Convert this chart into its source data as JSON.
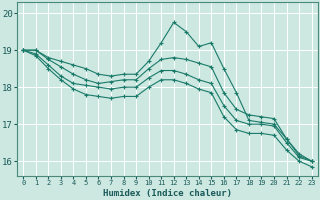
{
  "title": "",
  "xlabel": "Humidex (Indice chaleur)",
  "ylabel": "",
  "bg_color": "#cce8e0",
  "grid_color": "#ffffff",
  "line_color": "#1a7a6a",
  "xlim": [
    -0.5,
    23.5
  ],
  "ylim": [
    15.6,
    20.3
  ],
  "yticks": [
    16,
    17,
    18,
    19,
    20
  ],
  "xticks": [
    0,
    1,
    2,
    3,
    4,
    5,
    6,
    7,
    8,
    9,
    10,
    11,
    12,
    13,
    14,
    15,
    16,
    17,
    18,
    19,
    20,
    21,
    22,
    23
  ],
  "series": [
    [
      19.0,
      19.0,
      18.8,
      18.7,
      18.6,
      18.5,
      18.35,
      18.3,
      18.35,
      18.35,
      18.7,
      19.2,
      19.75,
      19.5,
      19.1,
      19.2,
      18.5,
      17.85,
      17.1,
      17.05,
      17.0,
      16.6,
      16.2,
      16.0
    ],
    [
      19.0,
      19.0,
      18.75,
      18.55,
      18.35,
      18.2,
      18.1,
      18.15,
      18.2,
      18.2,
      18.5,
      18.75,
      18.8,
      18.75,
      18.65,
      18.55,
      17.85,
      17.4,
      17.25,
      17.2,
      17.15,
      16.6,
      16.15,
      16.0
    ],
    [
      19.0,
      18.9,
      18.6,
      18.3,
      18.1,
      18.05,
      18.0,
      17.95,
      18.0,
      18.0,
      18.25,
      18.45,
      18.45,
      18.35,
      18.2,
      18.1,
      17.5,
      17.1,
      17.0,
      17.0,
      16.95,
      16.5,
      16.1,
      16.0
    ],
    [
      19.0,
      18.85,
      18.5,
      18.2,
      17.95,
      17.8,
      17.75,
      17.7,
      17.75,
      17.75,
      18.0,
      18.2,
      18.2,
      18.1,
      17.95,
      17.85,
      17.2,
      16.85,
      16.75,
      16.75,
      16.7,
      16.3,
      16.0,
      15.85
    ]
  ]
}
